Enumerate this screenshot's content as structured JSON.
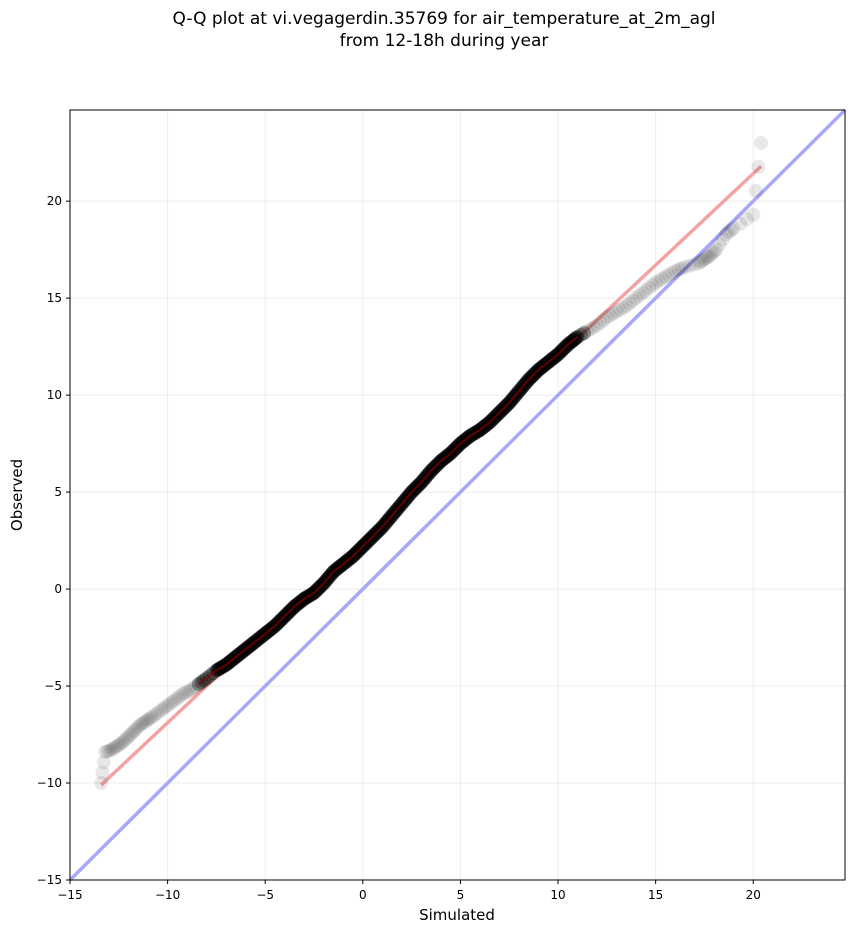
{
  "chart_data": {
    "type": "scatter",
    "title_line1": "Q-Q plot at vi.vegagerdin.35769 for air_temperature_at_2m_agl",
    "title_line2": "from 12-18h during year",
    "xlabel": "Simulated",
    "ylabel": "Observed",
    "xlim": [
      -15,
      24.7
    ],
    "ylim": [
      -15,
      24.7
    ],
    "grid": true,
    "x_ticks": [
      -15,
      -10,
      -5,
      0,
      5,
      10,
      15,
      20
    ],
    "y_ticks": [
      -15,
      -10,
      -5,
      0,
      5,
      10,
      15,
      20
    ],
    "tick_labels_x": [
      "−15",
      "−10",
      "−5",
      "0",
      "5",
      "10",
      "15",
      "20"
    ],
    "tick_labels_y": [
      "−15",
      "−10",
      "−5",
      "0",
      "5",
      "10",
      "15",
      "20"
    ],
    "points": [
      [
        -13.4,
        -10.0
      ],
      [
        -13.2,
        -8.4
      ],
      [
        -12.9,
        -8.3
      ],
      [
        -12.6,
        -8.1
      ],
      [
        -12.3,
        -7.9
      ],
      [
        -12.0,
        -7.6
      ],
      [
        -11.7,
        -7.3
      ],
      [
        -11.4,
        -7.0
      ],
      [
        -11.1,
        -6.8
      ],
      [
        -10.8,
        -6.6
      ],
      [
        -10.4,
        -6.3
      ],
      [
        -10.0,
        -6.0
      ],
      [
        -9.6,
        -5.7
      ],
      [
        -9.2,
        -5.4
      ],
      [
        -8.8,
        -5.2
      ],
      [
        -8.4,
        -4.9
      ],
      [
        -8.0,
        -4.6
      ],
      [
        -7.5,
        -4.2
      ],
      [
        -7.0,
        -3.9
      ],
      [
        -6.5,
        -3.5
      ],
      [
        -6.0,
        -3.1
      ],
      [
        -5.5,
        -2.7
      ],
      [
        -5.0,
        -2.3
      ],
      [
        -4.5,
        -1.9
      ],
      [
        -4.0,
        -1.4
      ],
      [
        -3.5,
        -0.9
      ],
      [
        -3.0,
        -0.5
      ],
      [
        -2.5,
        -0.2
      ],
      [
        -2.0,
        0.3
      ],
      [
        -1.5,
        0.9
      ],
      [
        -1.0,
        1.3
      ],
      [
        -0.5,
        1.7
      ],
      [
        0.0,
        2.2
      ],
      [
        0.5,
        2.7
      ],
      [
        1.0,
        3.2
      ],
      [
        1.5,
        3.8
      ],
      [
        2.0,
        4.4
      ],
      [
        2.5,
        5.0
      ],
      [
        3.0,
        5.5
      ],
      [
        3.5,
        6.1
      ],
      [
        4.0,
        6.6
      ],
      [
        4.5,
        7.0
      ],
      [
        5.0,
        7.5
      ],
      [
        5.5,
        7.9
      ],
      [
        6.0,
        8.2
      ],
      [
        6.5,
        8.6
      ],
      [
        7.0,
        9.1
      ],
      [
        7.5,
        9.6
      ],
      [
        8.0,
        10.2
      ],
      [
        8.5,
        10.8
      ],
      [
        9.0,
        11.3
      ],
      [
        9.5,
        11.7
      ],
      [
        10.0,
        12.1
      ],
      [
        10.5,
        12.6
      ],
      [
        11.0,
        13.0
      ],
      [
        11.5,
        13.3
      ],
      [
        12.0,
        13.6
      ],
      [
        12.5,
        14.0
      ],
      [
        13.0,
        14.3
      ],
      [
        13.5,
        14.6
      ],
      [
        14.0,
        15.0
      ],
      [
        14.5,
        15.4
      ],
      [
        15.0,
        15.8
      ],
      [
        15.5,
        16.1
      ],
      [
        16.0,
        16.4
      ],
      [
        16.5,
        16.6
      ],
      [
        17.2,
        16.8
      ],
      [
        17.5,
        17.0
      ],
      [
        17.8,
        17.2
      ],
      [
        18.1,
        17.5
      ],
      [
        18.6,
        18.3
      ],
      [
        19.0,
        18.6
      ],
      [
        20.0,
        19.3
      ],
      [
        20.4,
        23.0
      ]
    ],
    "fit_line": {
      "x": [
        -13.4,
        20.4
      ],
      "y": [
        -10.1,
        21.8
      ],
      "color": "#f4a3a3"
    },
    "identity_line": {
      "color": "#a8a8f8"
    },
    "point_color": "#000000",
    "trend_color": "#8b0000"
  }
}
